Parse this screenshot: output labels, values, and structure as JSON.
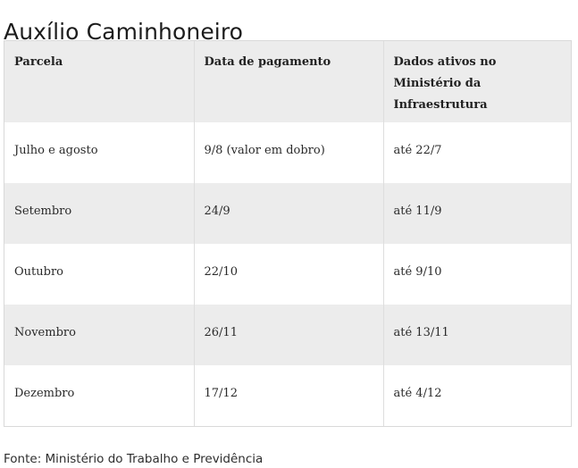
{
  "page": {
    "title": "Auxílio Caminhoneiro",
    "source": "Fonte: Ministério do Trabalho e Previdência"
  },
  "table": {
    "headers": [
      "Parcela",
      "Data de pagamento",
      "Dados ativos no Ministério da Infraestrutura"
    ],
    "rows": [
      [
        "Julho e agosto",
        "9/8 (valor em dobro)",
        "até 22/7"
      ],
      [
        "Setembro",
        "24/9",
        "até 11/9"
      ],
      [
        "Outubro",
        "22/10",
        "até 9/10"
      ],
      [
        "Novembro",
        "26/11",
        "até 13/11"
      ],
      [
        "Dezembro",
        "17/12",
        "até 4/12"
      ]
    ]
  },
  "colors": {
    "header_bg": "#ececec",
    "alt_row_bg": "#ececec",
    "border": "#d9d9d9"
  }
}
